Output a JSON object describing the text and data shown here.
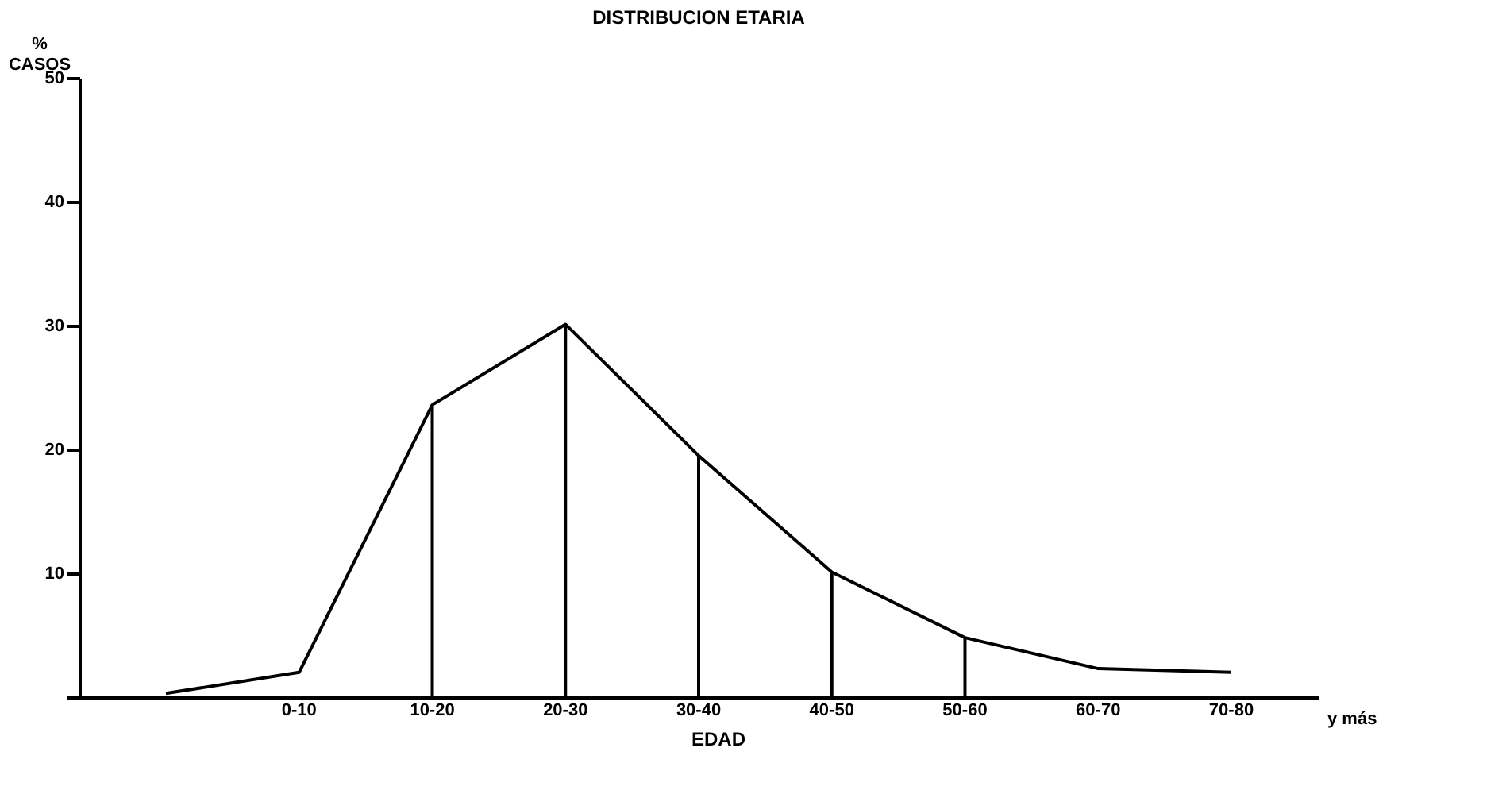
{
  "chart_data": {
    "type": "line",
    "title": "DISTRIBUCION ETARIA",
    "xlabel": "EDAD",
    "ylabel": "% CASOS",
    "categories": [
      null,
      "0-10",
      "10-20",
      "20-30",
      "30-40",
      "40-50",
      "50-60",
      "60-70",
      "70-80"
    ],
    "series": [
      {
        "color": "#000000",
        "values": [
          0.3,
          2.0,
          23.6,
          30.1,
          19.5,
          10.1,
          4.8,
          2.3,
          2.0
        ]
      },
      {
        "type": "bar",
        "color": "#000000",
        "values": [
          null,
          null,
          23.6,
          30.1,
          19.5,
          10.1,
          4.8,
          null,
          null
        ]
      }
    ],
    "ylim": [
      0,
      50
    ],
    "yticks": [
      {
        "value": 0,
        "label": null
      },
      10,
      20,
      30,
      40,
      50
    ],
    "annotations": [
      "y más"
    ],
    "grid": false,
    "marker": "none",
    "line_style": "solid"
  }
}
